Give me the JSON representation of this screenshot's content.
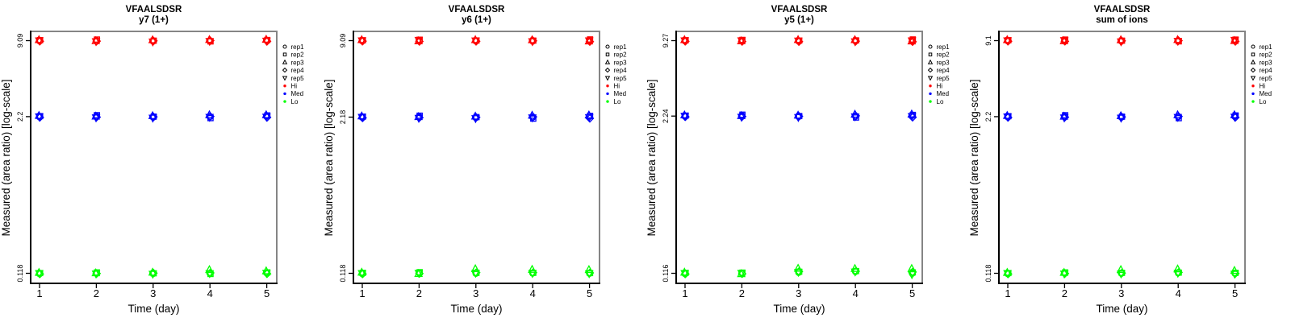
{
  "figure": {
    "peptide": "VFAALSDSR",
    "xlabel": "Time (day)",
    "ylabel": "Measured (area ratio) [log-scale]",
    "x_ticks": [
      "1",
      "2",
      "3",
      "4",
      "5"
    ],
    "legend": {
      "reps": [
        {
          "label": "rep1",
          "symbol": "circle"
        },
        {
          "label": "rep2",
          "symbol": "square"
        },
        {
          "label": "rep3",
          "symbol": "triangle-up"
        },
        {
          "label": "rep4",
          "symbol": "diamond"
        },
        {
          "label": "rep5",
          "symbol": "triangle-down"
        }
      ],
      "levels": [
        {
          "label": "Hi",
          "color": "#FF0000"
        },
        {
          "label": "Med",
          "color": "#0000FF"
        },
        {
          "label": "Lo",
          "color": "#00FF00"
        }
      ]
    },
    "colors": {
      "box_border": "#858585",
      "axis": "#000000",
      "text": "#000000"
    }
  },
  "chart_data": [
    {
      "type": "scatter",
      "title": "VFAALSDSR",
      "subtitle": "y7 (1+)",
      "xlabel": "Time (day)",
      "ylabel": "Measured (area ratio) [log-scale]",
      "y_scale": "log",
      "x": [
        1,
        2,
        3,
        4,
        5
      ],
      "y_tick_labels": [
        "9.09",
        "2.2",
        "0.118"
      ],
      "series": [
        {
          "name": "Hi",
          "color": "#FF0000",
          "values": [
            [
              9.05,
              9.18,
              9.22,
              8.99,
              9.09
            ],
            [
              9.12,
              9.28,
              9.05,
              9.01,
              8.96
            ],
            [
              9.0,
              9.09,
              9.2,
              9.05,
              8.91
            ],
            [
              9.05,
              8.96,
              9.24,
              9.1,
              9.0
            ],
            [
              9.14,
              9.2,
              9.29,
              8.98,
              9.05
            ]
          ]
        },
        {
          "name": "Med",
          "color": "#0000FF",
          "values": [
            [
              2.19,
              2.22,
              2.24,
              2.17,
              2.2
            ],
            [
              2.22,
              2.26,
              2.21,
              2.18,
              2.16
            ],
            [
              2.18,
              2.2,
              2.23,
              2.19,
              2.15
            ],
            [
              2.2,
              2.14,
              2.27,
              2.21,
              2.18
            ],
            [
              2.23,
              2.25,
              2.27,
              2.17,
              2.19
            ]
          ]
        },
        {
          "name": "Lo",
          "color": "#00FF00",
          "values": [
            [
              0.117,
              0.1185,
              0.1195,
              0.1165,
              0.118
            ],
            [
              0.119,
              0.12,
              0.1185,
              0.1175,
              0.117
            ],
            [
              0.1175,
              0.118,
              0.12,
              0.1185,
              0.1165
            ],
            [
              0.118,
              0.1165,
              0.126,
              0.119,
              0.1178
            ],
            [
              0.1195,
              0.12,
              0.123,
              0.117,
              0.1185
            ]
          ]
        }
      ]
    },
    {
      "type": "scatter",
      "title": "VFAALSDSR",
      "subtitle": "y6 (1+)",
      "xlabel": "Time (day)",
      "ylabel": "Measured (area ratio) [log-scale]",
      "y_scale": "log",
      "x": [
        1,
        2,
        3,
        4,
        5
      ],
      "y_tick_labels": [
        "9.09",
        "2.18",
        "0.118"
      ],
      "series": [
        {
          "name": "Hi",
          "color": "#FF0000",
          "values": [
            [
              9.05,
              9.16,
              9.22,
              9.0,
              9.09
            ],
            [
              9.1,
              9.25,
              9.02,
              8.95,
              9.18
            ],
            [
              9.04,
              9.12,
              9.22,
              8.98,
              9.08
            ],
            [
              9.02,
              9.1,
              9.2,
              9.06,
              8.96
            ],
            [
              9.18,
              9.3,
              9.0,
              8.92,
              9.1
            ]
          ]
        },
        {
          "name": "Med",
          "color": "#0000FF",
          "values": [
            [
              2.17,
              2.2,
              2.22,
              2.15,
              2.18
            ],
            [
              2.2,
              2.24,
              2.19,
              2.16,
              2.14
            ],
            [
              2.16,
              2.18,
              2.21,
              2.17,
              2.13
            ],
            [
              2.18,
              2.12,
              2.25,
              2.19,
              2.16
            ],
            [
              2.21,
              2.23,
              2.26,
              2.13,
              2.17
            ]
          ]
        },
        {
          "name": "Lo",
          "color": "#00FF00",
          "values": [
            [
              0.117,
              0.119,
              0.12,
              0.1165,
              0.118
            ],
            [
              0.119,
              0.1205,
              0.117,
              0.1175,
              0.1185
            ],
            [
              0.118,
              0.119,
              0.128,
              0.1195,
              0.1185
            ],
            [
              0.1185,
              0.119,
              0.1265,
              0.1195,
              0.118
            ],
            [
              0.118,
              0.1185,
              0.126,
              0.119,
              0.1175
            ]
          ]
        }
      ]
    },
    {
      "type": "scatter",
      "title": "VFAALSDSR",
      "subtitle": "y5 (1+)",
      "xlabel": "Time (day)",
      "ylabel": "Measured (area ratio) [log-scale]",
      "y_scale": "log",
      "x": [
        1,
        2,
        3,
        4,
        5
      ],
      "y_tick_labels": [
        "9.27",
        "2.24",
        "0.116"
      ],
      "series": [
        {
          "name": "Hi",
          "color": "#FF0000",
          "values": [
            [
              9.22,
              9.35,
              9.4,
              9.15,
              9.27
            ],
            [
              9.25,
              9.4,
              9.2,
              9.12,
              9.3
            ],
            [
              9.2,
              9.28,
              9.42,
              9.1,
              9.25
            ],
            [
              9.22,
              9.32,
              9.4,
              9.18,
              9.12
            ],
            [
              9.35,
              9.48,
              9.18,
              9.08,
              9.28
            ]
          ]
        },
        {
          "name": "Med",
          "color": "#0000FF",
          "values": [
            [
              2.23,
              2.26,
              2.28,
              2.21,
              2.24
            ],
            [
              2.26,
              2.3,
              2.25,
              2.22,
              2.2
            ],
            [
              2.22,
              2.24,
              2.27,
              2.23,
              2.19
            ],
            [
              2.24,
              2.18,
              2.31,
              2.25,
              2.22
            ],
            [
              2.27,
              2.29,
              2.32,
              2.19,
              2.23
            ]
          ]
        },
        {
          "name": "Lo",
          "color": "#00FF00",
          "values": [
            [
              0.115,
              0.117,
              0.118,
              0.1145,
              0.116
            ],
            [
              0.116,
              0.1175,
              0.1145,
              0.115,
              0.1165
            ],
            [
              0.118,
              0.1195,
              0.127,
              0.12,
              0.1185
            ],
            [
              0.12,
              0.121,
              0.1265,
              0.1205,
              0.1195
            ],
            [
              0.116,
              0.118,
              0.1265,
              0.119,
              0.1135
            ]
          ]
        }
      ]
    },
    {
      "type": "scatter",
      "title": "VFAALSDSR",
      "subtitle": "sum of ions",
      "xlabel": "Time (day)",
      "ylabel": "Measured (area ratio) [log-scale]",
      "y_scale": "log",
      "x": [
        1,
        2,
        3,
        4,
        5
      ],
      "y_tick_labels": [
        "9.1",
        "2.2",
        "0.118"
      ],
      "series": [
        {
          "name": "Hi",
          "color": "#FF0000",
          "values": [
            [
              9.06,
              9.18,
              9.23,
              9.0,
              9.1
            ],
            [
              9.12,
              9.28,
              9.05,
              8.98,
              9.16
            ],
            [
              9.02,
              9.1,
              9.22,
              9.06,
              8.94
            ],
            [
              9.06,
              8.98,
              9.24,
              9.1,
              9.02
            ],
            [
              9.16,
              9.28,
              9.08,
              8.96,
              9.2
            ]
          ]
        },
        {
          "name": "Med",
          "color": "#0000FF",
          "values": [
            [
              2.19,
              2.22,
              2.24,
              2.17,
              2.2
            ],
            [
              2.22,
              2.26,
              2.21,
              2.18,
              2.16
            ],
            [
              2.18,
              2.2,
              2.23,
              2.19,
              2.15
            ],
            [
              2.2,
              2.14,
              2.27,
              2.21,
              2.18
            ],
            [
              2.23,
              2.25,
              2.27,
              2.17,
              2.19
            ]
          ]
        },
        {
          "name": "Lo",
          "color": "#00FF00",
          "values": [
            [
              0.117,
              0.1185,
              0.1195,
              0.1165,
              0.118
            ],
            [
              0.1185,
              0.12,
              0.1195,
              0.1175,
              0.117
            ],
            [
              0.118,
              0.119,
              0.126,
              0.1185,
              0.117
            ],
            [
              0.119,
              0.1195,
              0.1275,
              0.12,
              0.1185
            ],
            [
              0.118,
              0.119,
              0.124,
              0.1175,
              0.1165
            ]
          ]
        }
      ]
    }
  ]
}
